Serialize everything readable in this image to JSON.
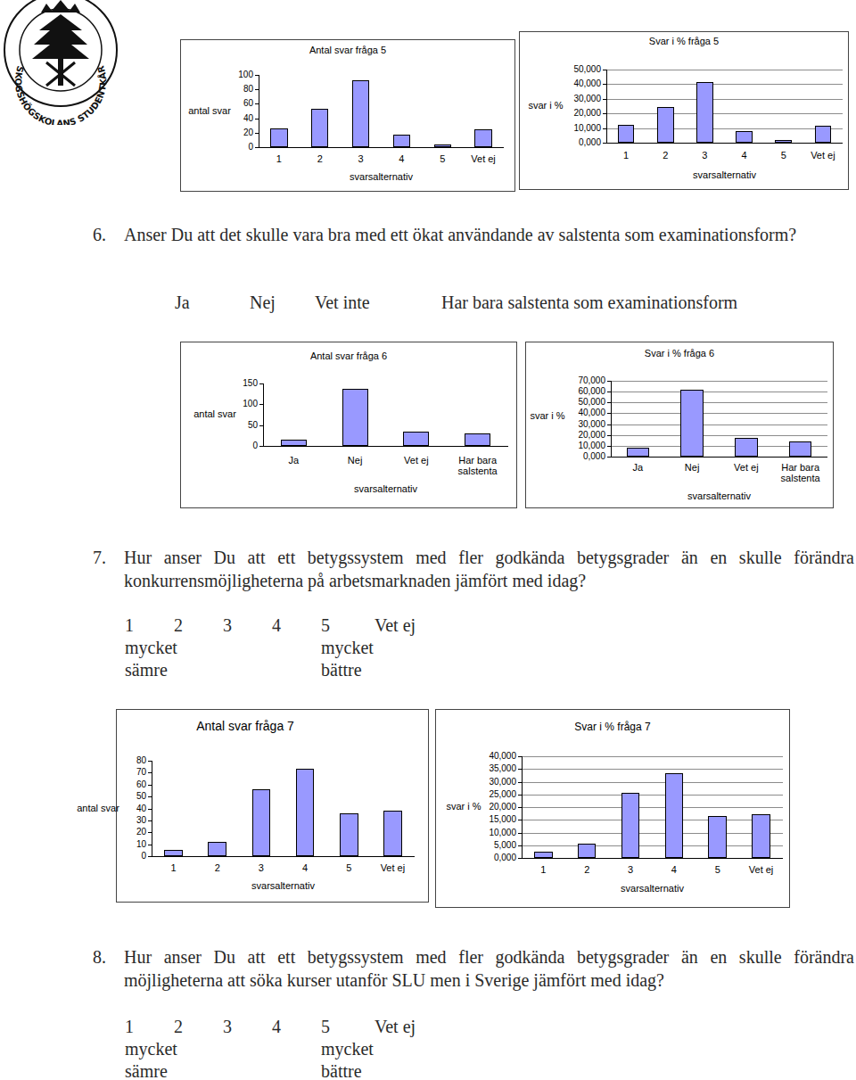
{
  "header": {
    "logo_text": "SKOGSHÖGSKOLANS STUDENTKÅR"
  },
  "questions": [
    {
      "number": "6.",
      "text": "Anser Du att det skulle vara bra med ett ökat användande av salstenta som examinationsform?",
      "options": [
        "Ja",
        "Nej",
        "Vet inte",
        "Har bara salstenta som examinationsform"
      ]
    },
    {
      "number": "7.",
      "text": "Hur anser Du att ett betygssystem med fler godkända betygsgrader än en skulle förändra konkurrensmöjligheterna på arbetsmarknaden jämfört med idag?",
      "scale": [
        "1",
        "2",
        "3",
        "4",
        "5",
        "Vet ej"
      ],
      "low_label": [
        "mycket",
        "sämre"
      ],
      "high_label": [
        "mycket",
        "bättre"
      ]
    },
    {
      "number": "8.",
      "text": "Hur anser Du att ett betygssystem med fler godkända betygsgrader än en skulle förändra möjligheterna att söka kurser utanför SLU men i Sverige jämfört med idag?",
      "scale": [
        "1",
        "2",
        "3",
        "4",
        "5",
        "Vet ej"
      ],
      "low_label": [
        "mycket",
        "sämre"
      ],
      "high_label": [
        "mycket",
        "bättre"
      ]
    }
  ],
  "chart_data": [
    {
      "type": "bar",
      "title": "Antal svar fråga 5",
      "x_label": "svarsalternativ",
      "y_label": "antal svar",
      "categories": [
        "1",
        "2",
        "3",
        "4",
        "5",
        "Vet ej"
      ],
      "values": [
        26,
        53,
        92,
        17,
        4,
        25
      ],
      "color": "#9999ff",
      "ylim": [
        0,
        100
      ],
      "yticks": [
        0,
        20,
        40,
        60,
        80,
        100
      ],
      "grid": false
    },
    {
      "type": "bar",
      "title": "Svar i % fråga 5",
      "x_label": "svarsalternativ",
      "y_label": "svar i %",
      "categories": [
        "1",
        "2",
        "3",
        "4",
        "5",
        "Vet ej"
      ],
      "values": [
        12,
        24.5,
        41.5,
        8,
        2,
        11.5
      ],
      "color": "#9999ff",
      "ylim": [
        0,
        50
      ],
      "yticks": [
        {
          "value": 0,
          "label": "0,000"
        },
        {
          "value": 10,
          "label": "10,000"
        },
        {
          "value": 20,
          "label": "20,000"
        },
        {
          "value": 30,
          "label": "30,000"
        },
        {
          "value": 40,
          "label": "40,000"
        },
        {
          "value": 50,
          "label": "50,000"
        }
      ],
      "grid": true
    },
    {
      "type": "bar",
      "title": "Antal svar fråga 6",
      "x_label": "svarsalternativ",
      "y_label": "antal svar",
      "categories": [
        "Ja",
        "Nej",
        "Vet ej",
        "Har bara salstenta"
      ],
      "values": [
        15,
        137,
        34,
        30
      ],
      "color": "#9999ff",
      "ylim": [
        0,
        150
      ],
      "yticks": [
        0,
        50,
        100,
        150
      ],
      "grid": false
    },
    {
      "type": "bar",
      "title": "Svar i % fråga 6",
      "x_label": "svarsalternativ",
      "y_label": "svar i %",
      "categories": [
        "Ja",
        "Nej",
        "Vet ej",
        "Har bara salstenta"
      ],
      "values": [
        8,
        62,
        17,
        14
      ],
      "color": "#9999ff",
      "ylim": [
        0,
        70
      ],
      "yticks": [
        {
          "value": 0,
          "label": "0,000"
        },
        {
          "value": 10,
          "label": "10,000"
        },
        {
          "value": 20,
          "label": "20,000"
        },
        {
          "value": 30,
          "label": "30,000"
        },
        {
          "value": 40,
          "label": "40,000"
        },
        {
          "value": 50,
          "label": "50,000"
        },
        {
          "value": 60,
          "label": "60,000"
        },
        {
          "value": 70,
          "label": "70,000"
        }
      ],
      "grid": true
    },
    {
      "type": "bar",
      "title": "Antal svar fråga 7",
      "x_label": "svarsalternativ",
      "y_label": "antal svar",
      "categories": [
        "1",
        "2",
        "3",
        "4",
        "5",
        "Vet ej"
      ],
      "values": [
        5,
        12,
        56,
        73,
        36,
        38
      ],
      "color": "#9999ff",
      "ylim": [
        0,
        80
      ],
      "yticks": [
        0,
        10,
        20,
        30,
        40,
        50,
        60,
        70,
        80
      ],
      "grid": false
    },
    {
      "type": "bar",
      "title": "Svar i % fråga 7",
      "x_label": "svarsalternativ",
      "y_label": "svar i %",
      "categories": [
        "1",
        "2",
        "3",
        "4",
        "5",
        "Vet ej"
      ],
      "values": [
        2.3,
        5.5,
        25.5,
        33.2,
        16.4,
        17.3
      ],
      "color": "#9999ff",
      "ylim": [
        0,
        40
      ],
      "yticks": [
        {
          "value": 0,
          "label": "0,000"
        },
        {
          "value": 5,
          "label": "5,000"
        },
        {
          "value": 10,
          "label": "10,000"
        },
        {
          "value": 15,
          "label": "15,000"
        },
        {
          "value": 20,
          "label": "20,000"
        },
        {
          "value": 25,
          "label": "25,000"
        },
        {
          "value": 30,
          "label": "30,000"
        },
        {
          "value": 35,
          "label": "35,000"
        },
        {
          "value": 40,
          "label": "40,000"
        }
      ],
      "grid": true
    }
  ]
}
